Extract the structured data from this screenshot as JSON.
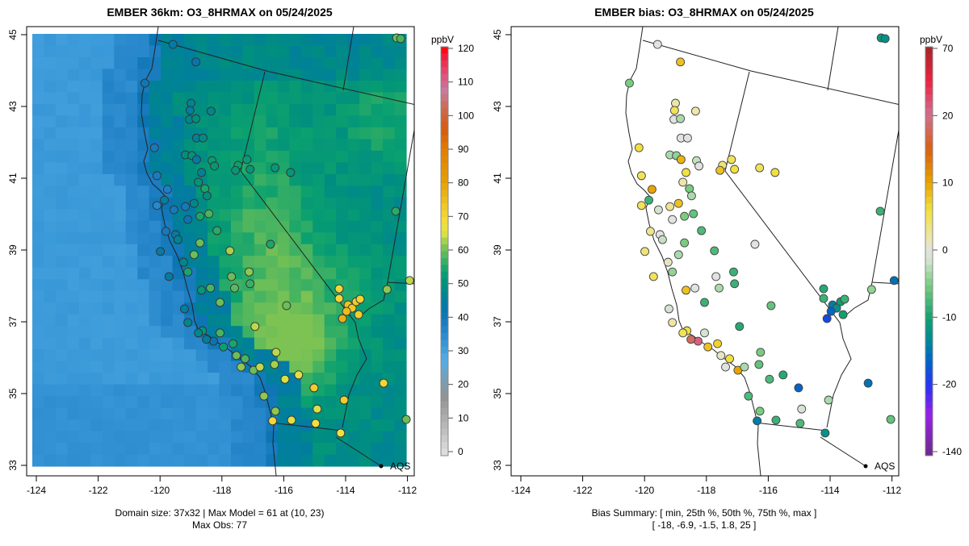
{
  "left_panel": {
    "title": "EMBER 36km: O3_8HRMAX on 05/24/2025",
    "colorbar_unit": "ppbV",
    "colorbar_ticks": [
      "120",
      "110",
      "100",
      "90",
      "80",
      "70",
      "60",
      "50",
      "40",
      "30",
      "20",
      "10",
      "0"
    ],
    "colorbar_range": [
      0,
      120
    ],
    "footer_line1": "Domain size: 37x32 | Max Model = 61 at (10, 23)",
    "footer_line2": "Max Obs: 77",
    "site_label": "AQS"
  },
  "right_panel": {
    "title": "EMBER bias: O3_8HRMAX on 05/24/2025",
    "colorbar_unit": "ppbV",
    "colorbar_ticks": [
      "70",
      "20",
      "10",
      "0",
      "-10",
      "-20",
      "-140"
    ],
    "footer_line1": "Bias Summary: [ min, 25th %, 50th %, 75th %, max ]",
    "footer_line2": "[ -18,   -6.9,   -1.5,   1.8,   25 ]",
    "site_label": "AQS"
  },
  "axes": {
    "x_ticks": [
      "-124",
      "-122",
      "-120",
      "-118",
      "-116",
      "-114",
      "-112"
    ],
    "y_ticks": [
      "45",
      "43",
      "41",
      "39",
      "37",
      "35",
      "33"
    ],
    "xlim": [
      -124,
      -112
    ],
    "ylim": [
      33,
      45
    ]
  },
  "chart_data": {
    "type": "scatter",
    "fields": [
      "lon",
      "lat",
      "obs_ppbv",
      "bias_ppbv"
    ],
    "stations": [
      [
        -119.58,
        44.73,
        44,
        0
      ],
      [
        -118.84,
        44.24,
        42,
        8
      ],
      [
        -120.49,
        43.65,
        41,
        -5
      ],
      [
        -119.0,
        43.09,
        47,
        2
      ],
      [
        -119.03,
        42.89,
        45,
        5
      ],
      [
        -118.35,
        42.87,
        48,
        2
      ],
      [
        -119.05,
        42.64,
        48,
        0
      ],
      [
        -118.84,
        42.66,
        50,
        -3
      ],
      [
        -118.82,
        42.12,
        46,
        0
      ],
      [
        -118.61,
        42.12,
        49,
        0
      ],
      [
        -120.18,
        41.85,
        40,
        6
      ],
      [
        -119.18,
        41.65,
        50,
        -3
      ],
      [
        -118.97,
        41.63,
        51,
        -4
      ],
      [
        -118.82,
        41.52,
        44,
        9
      ],
      [
        -118.32,
        41.49,
        53,
        -2
      ],
      [
        -118.24,
        41.34,
        52,
        0
      ],
      [
        -118.66,
        41.16,
        47,
        6
      ],
      [
        -120.1,
        41.07,
        39,
        5
      ],
      [
        -118.55,
        40.71,
        55,
        -5
      ],
      [
        -119.76,
        40.69,
        38,
        10
      ],
      [
        -118.76,
        40.89,
        51,
        2
      ],
      [
        -119.86,
        40.39,
        45,
        -8
      ],
      [
        -120.1,
        40.24,
        36,
        5
      ],
      [
        -119.55,
        40.12,
        40,
        -1
      ],
      [
        -118.9,
        40.3,
        48,
        8
      ],
      [
        -118.42,
        40.01,
        58,
        -6
      ],
      [
        -118.48,
        40.51,
        50,
        -3
      ],
      [
        -119.18,
        40.21,
        40,
        3
      ],
      [
        -119.1,
        39.85,
        42,
        0
      ],
      [
        -118.71,
        39.94,
        55,
        -5
      ],
      [
        -119.5,
        39.43,
        44,
        0
      ],
      [
        -119.42,
        39.29,
        47,
        -2
      ],
      [
        -118.16,
        39.54,
        56,
        -7
      ],
      [
        -118.71,
        39.2,
        60,
        -5
      ],
      [
        -118.9,
        38.87,
        60,
        -3
      ],
      [
        -119.81,
        39.52,
        40,
        3
      ],
      [
        -119.99,
        38.96,
        44,
        4
      ],
      [
        -119.24,
        38.66,
        48,
        1
      ],
      [
        -119.1,
        38.39,
        55,
        -4
      ],
      [
        -119.71,
        38.26,
        44,
        5
      ],
      [
        -117.74,
        38.98,
        63,
        -7
      ],
      [
        -117.48,
        41.36,
        54,
        4
      ],
      [
        -117.19,
        41.52,
        53,
        5
      ],
      [
        -117.09,
        41.25,
        52,
        6
      ],
      [
        -117.56,
        41.22,
        52,
        8
      ],
      [
        -116.28,
        41.29,
        52,
        5
      ],
      [
        -115.78,
        41.16,
        52,
        6
      ],
      [
        -116.43,
        39.16,
        55,
        0
      ],
      [
        -117.12,
        38.39,
        62,
        -8
      ],
      [
        -117.69,
        38.26,
        60,
        0
      ],
      [
        -118.37,
        37.94,
        58,
        0
      ],
      [
        -118.66,
        37.88,
        52,
        8
      ],
      [
        -118.06,
        37.54,
        60,
        -8
      ],
      [
        -117.59,
        37.94,
        59,
        -3
      ],
      [
        -117.09,
        38.06,
        57,
        -8
      ],
      [
        -115.91,
        37.45,
        60,
        -6
      ],
      [
        -116.93,
        36.87,
        64,
        -9
      ],
      [
        -119.21,
        37.36,
        45,
        -1
      ],
      [
        -119.1,
        36.98,
        48,
        2
      ],
      [
        -118.63,
        36.75,
        52,
        6
      ],
      [
        -118.06,
        36.69,
        58,
        -1
      ],
      [
        -118.27,
        36.46,
        42,
        25
      ],
      [
        -118.5,
        36.51,
        45,
        18
      ],
      [
        -118.76,
        36.69,
        48,
        5
      ],
      [
        -117.95,
        36.3,
        54,
        8
      ],
      [
        -117.64,
        36.39,
        55,
        7
      ],
      [
        -117.53,
        36.06,
        60,
        1
      ],
      [
        -117.25,
        35.97,
        58,
        6
      ],
      [
        -116.98,
        35.65,
        60,
        10
      ],
      [
        -117.38,
        35.74,
        62,
        0
      ],
      [
        -116.77,
        35.74,
        64,
        -3
      ],
      [
        -116.3,
        35.81,
        63,
        -6
      ],
      [
        -116.25,
        36.15,
        64,
        -5
      ],
      [
        -115.96,
        35.4,
        65,
        -7
      ],
      [
        -115.52,
        35.52,
        66,
        -9
      ],
      [
        -115.02,
        35.16,
        72,
        -16
      ],
      [
        -116.64,
        34.93,
        62,
        -7
      ],
      [
        -116.27,
        34.51,
        62,
        -5
      ],
      [
        -115.75,
        34.26,
        66,
        -8
      ],
      [
        -114.92,
        34.57,
        65,
        -1
      ],
      [
        -114.97,
        34.17,
        68,
        -7
      ],
      [
        -116.36,
        34.24,
        70,
        -14
      ],
      [
        -113.92,
        37.47,
        74,
        -14
      ],
      [
        -113.79,
        37.38,
        73,
        -12
      ],
      [
        -113.97,
        37.29,
        75,
        -16
      ],
      [
        -113.66,
        37.56,
        72,
        -10
      ],
      [
        -114.1,
        37.09,
        77,
        -18
      ],
      [
        -114.21,
        37.92,
        70,
        -9
      ],
      [
        -114.21,
        37.65,
        70,
        -8
      ],
      [
        -113.53,
        37.63,
        71,
        -8
      ],
      [
        -113.58,
        37.2,
        72,
        -10
      ],
      [
        -112.38,
        40.08,
        56,
        -8
      ],
      [
        -112.35,
        44.91,
        60,
        -11
      ],
      [
        -112.22,
        44.89,
        58,
        -12
      ],
      [
        -111.93,
        38.15,
        64,
        -15
      ],
      [
        -112.66,
        37.9,
        62,
        -4
      ],
      [
        -112.77,
        35.29,
        70,
        -15
      ],
      [
        -112.04,
        34.28,
        60,
        -6
      ],
      [
        -114.05,
        34.82,
        72,
        -3
      ],
      [
        -114.16,
        33.9,
        68,
        -12
      ]
    ]
  },
  "colors": {
    "background": "#ffffff",
    "frame": "#000000",
    "station_stroke": "#333333"
  }
}
